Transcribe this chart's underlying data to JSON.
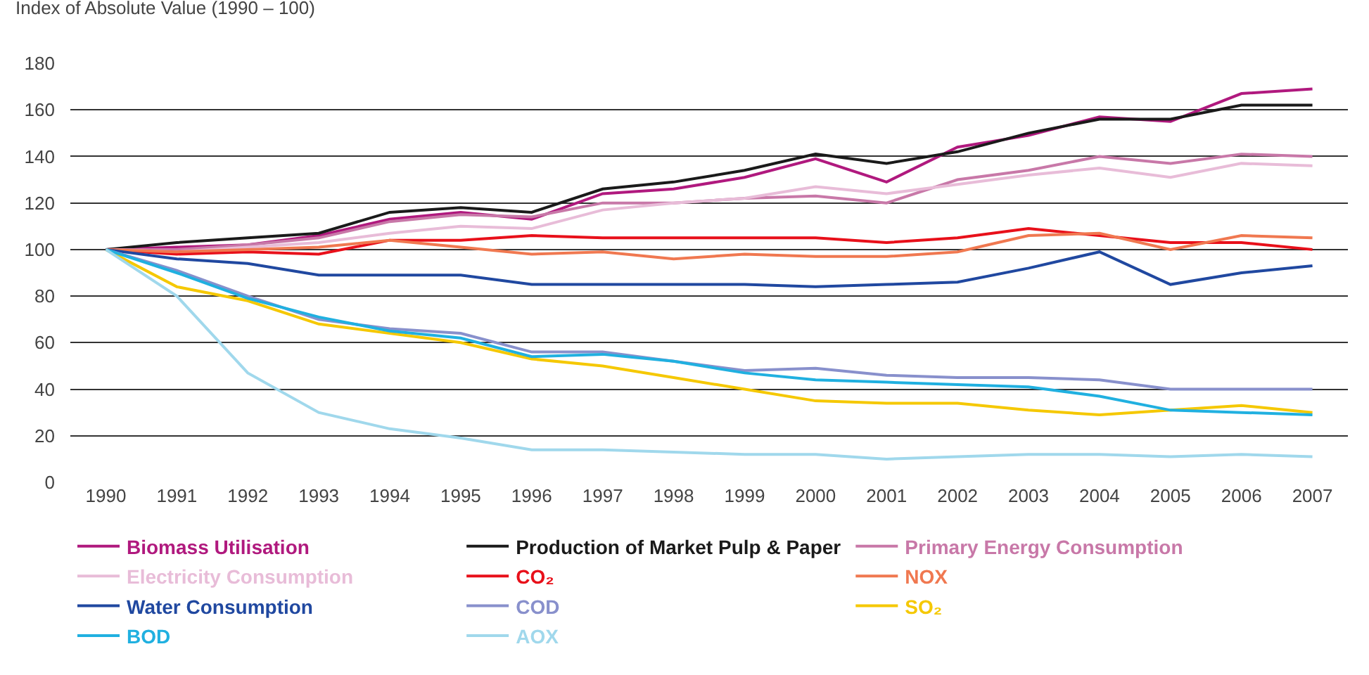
{
  "chart_data": {
    "type": "line",
    "ylabel": "Index of Absolute Value (1990 – 100)",
    "x": [
      1990,
      1991,
      1992,
      1993,
      1994,
      1995,
      1996,
      1997,
      1998,
      1999,
      2000,
      2001,
      2002,
      2003,
      2004,
      2005,
      2006,
      2007
    ],
    "xlim": [
      1989.5,
      2007.5
    ],
    "xticks": [
      1990,
      1991,
      1992,
      1993,
      1994,
      1995,
      1996,
      1997,
      1998,
      1999,
      2000,
      2001,
      2002,
      2003,
      2004,
      2005,
      2006,
      2007
    ],
    "ylim": [
      0,
      180
    ],
    "yticks": [
      0,
      20,
      40,
      60,
      80,
      100,
      120,
      140,
      160,
      180
    ],
    "grid": "y",
    "legend": "bottom",
    "marker": "none",
    "line_style": "solid",
    "series": [
      {
        "name": "Biomass Utilisation",
        "color": "#b0197e",
        "values": [
          100,
          101,
          102,
          106,
          113,
          116,
          113,
          124,
          126,
          131,
          139,
          129,
          144,
          149,
          157,
          155,
          167,
          169
        ]
      },
      {
        "name": "Production of Market Pulp & Paper",
        "color": "#1a1a1a",
        "values": [
          100,
          103,
          105,
          107,
          116,
          118,
          116,
          126,
          129,
          134,
          141,
          137,
          142,
          150,
          156,
          156,
          162,
          162
        ]
      },
      {
        "name": "Primary Energy Consumption",
        "color": "#c878a8",
        "values": [
          100,
          100,
          102,
          105,
          112,
          115,
          114,
          120,
          120,
          122,
          123,
          120,
          130,
          134,
          140,
          137,
          141,
          140
        ]
      },
      {
        "name": "Electricity Consumption",
        "color": "#e8bcd8",
        "values": [
          100,
          99,
          101,
          103,
          107,
          110,
          109,
          117,
          120,
          122,
          127,
          124,
          128,
          132,
          135,
          131,
          137,
          136
        ]
      },
      {
        "name": "CO₂",
        "color": "#e8101a",
        "values": [
          100,
          98,
          99,
          98,
          104,
          104,
          106,
          105,
          105,
          105,
          105,
          103,
          105,
          109,
          106,
          103,
          103,
          100
        ]
      },
      {
        "name": "NOX",
        "color": "#f07850",
        "values": [
          100,
          99,
          100,
          101,
          104,
          101,
          98,
          99,
          96,
          98,
          97,
          97,
          99,
          106,
          107,
          100,
          106,
          105
        ]
      },
      {
        "name": "Water Consumption",
        "color": "#2048a0",
        "values": [
          100,
          96,
          94,
          89,
          89,
          89,
          85,
          85,
          85,
          85,
          84,
          85,
          86,
          92,
          99,
          85,
          90,
          93
        ]
      },
      {
        "name": "COD",
        "color": "#8890cc",
        "values": [
          100,
          91,
          80,
          70,
          66,
          64,
          56,
          56,
          52,
          48,
          49,
          46,
          45,
          45,
          44,
          40,
          40,
          40
        ]
      },
      {
        "name": "SO₂",
        "color": "#f5c800",
        "values": [
          100,
          84,
          78,
          68,
          64,
          60,
          53,
          50,
          45,
          40,
          35,
          34,
          34,
          31,
          29,
          31,
          33,
          30
        ]
      },
      {
        "name": "BOD",
        "color": "#20b0e0",
        "values": [
          100,
          90,
          79,
          71,
          65,
          62,
          54,
          55,
          52,
          47,
          44,
          43,
          42,
          41,
          37,
          31,
          30,
          29
        ]
      },
      {
        "name": "AOX",
        "color": "#a0d8ec",
        "values": [
          100,
          80,
          47,
          30,
          23,
          19,
          14,
          14,
          13,
          12,
          12,
          10,
          11,
          12,
          12,
          11,
          12,
          11
        ]
      }
    ]
  }
}
